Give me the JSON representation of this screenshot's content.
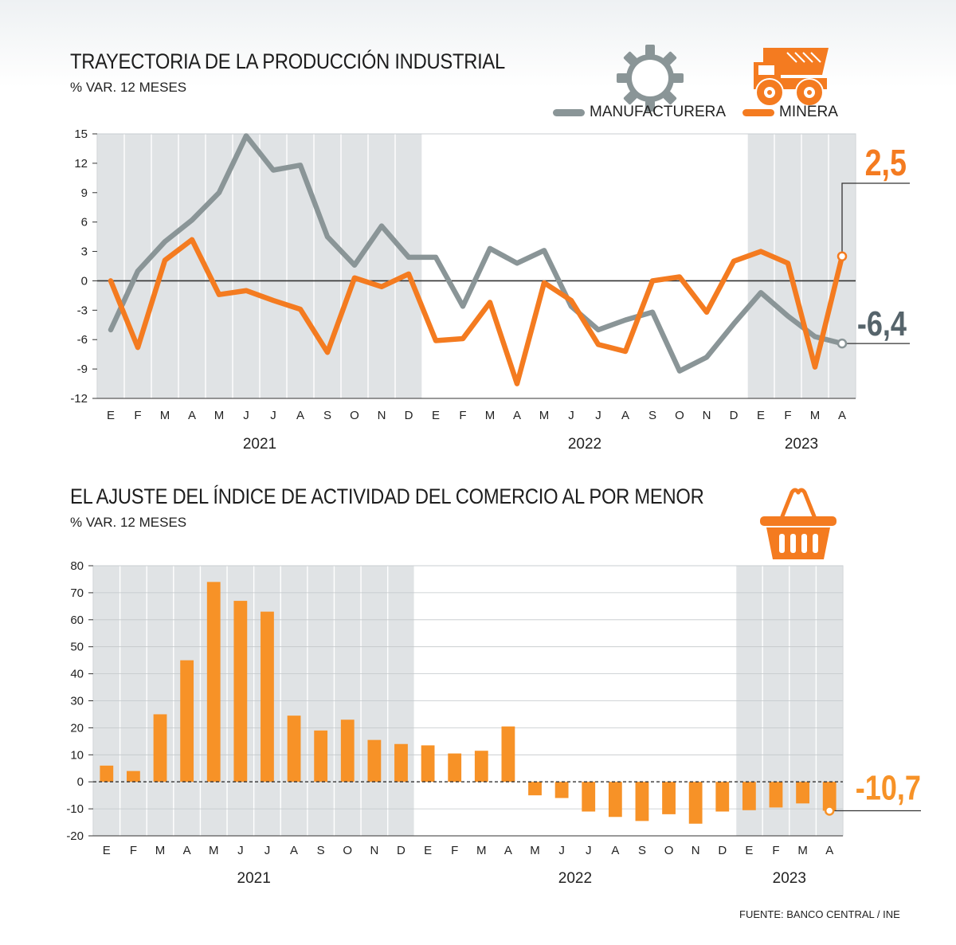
{
  "colors": {
    "manufacturing": "#8a9597",
    "mining": "#f47b20",
    "shade": "#e0e3e5",
    "bar": "#f79227",
    "label_dark": "#56646b"
  },
  "icons": {
    "chart1": "gear-icon",
    "chart1b": "mining-truck-icon",
    "chart2": "shopping-basket-icon"
  },
  "source": "FUENTE: BANCO CENTRAL / INE",
  "chart_data": [
    {
      "type": "line",
      "title": "TRAYECTORIA DE LA PRODUCCIÓN INDUSTRIAL",
      "subtitle": "% VAR. 12 MESES",
      "categories": [
        "E",
        "F",
        "M",
        "A",
        "M",
        "J",
        "J",
        "A",
        "S",
        "O",
        "N",
        "D",
        "E",
        "F",
        "M",
        "A",
        "M",
        "J",
        "J",
        "A",
        "S",
        "O",
        "N",
        "D",
        "E",
        "F",
        "M",
        "A"
      ],
      "years": [
        {
          "label": "2021",
          "months": 12
        },
        {
          "label": "2022",
          "months": 12
        },
        {
          "label": "2023",
          "months": 4
        }
      ],
      "ylim": [
        -12,
        15
      ],
      "yticks": [
        15,
        12,
        9,
        6,
        3,
        0,
        -3,
        -6,
        -9,
        -12
      ],
      "grid": true,
      "legend_position": "top-right",
      "series": [
        {
          "name": "MANUFACTURERA",
          "values": [
            -5,
            1,
            4,
            6.2,
            9,
            14.8,
            11.3,
            11.8,
            4.5,
            1.6,
            5.6,
            2.4,
            2.4,
            -2.6,
            3.3,
            1.8,
            3.1,
            -2.6,
            -5,
            -4,
            -3.2,
            -9.2,
            -7.8,
            -4.4,
            -1.2,
            -3.6,
            -5.7,
            -6.4
          ]
        },
        {
          "name": "MINERA",
          "values": [
            0,
            -6.8,
            2.1,
            4.2,
            -1.4,
            -1,
            -2,
            -2.9,
            -7.3,
            0.3,
            -0.6,
            0.7,
            -6.1,
            -5.9,
            -2.2,
            -10.5,
            -0.2,
            -2,
            -6.5,
            -7.2,
            0,
            0.4,
            -3.2,
            2,
            3,
            1.8,
            -8.8,
            2.5
          ]
        }
      ],
      "annotations": [
        {
          "series": "MINERA",
          "label": "2,5"
        },
        {
          "series": "MANUFACTURERA",
          "label": "-6,4"
        }
      ]
    },
    {
      "type": "bar",
      "title": "EL AJUSTE DEL ÍNDICE DE ACTIVIDAD DEL COMERCIO AL POR MENOR",
      "subtitle": "% VAR. 12 MESES",
      "categories": [
        "E",
        "F",
        "M",
        "A",
        "M",
        "J",
        "J",
        "A",
        "S",
        "O",
        "N",
        "D",
        "E",
        "F",
        "M",
        "A",
        "M",
        "J",
        "J",
        "A",
        "S",
        "O",
        "N",
        "D",
        "E",
        "F",
        "M",
        "A"
      ],
      "years": [
        {
          "label": "2021",
          "months": 12
        },
        {
          "label": "2022",
          "months": 12
        },
        {
          "label": "2023",
          "months": 4
        }
      ],
      "ylim": [
        -20,
        80
      ],
      "yticks": [
        80,
        70,
        60,
        50,
        40,
        30,
        20,
        10,
        0,
        -10,
        -20
      ],
      "grid": true,
      "values": [
        6,
        4,
        25,
        45,
        74,
        67,
        63,
        24.5,
        19,
        23,
        15.5,
        14,
        13.5,
        10.5,
        11.5,
        20.5,
        -5,
        -6,
        -11,
        -13,
        -14.5,
        -12,
        -15.5,
        -11,
        -10.5,
        -9.5,
        -8,
        -10.7
      ],
      "annotations": [
        {
          "label": "-10,7"
        }
      ]
    }
  ]
}
